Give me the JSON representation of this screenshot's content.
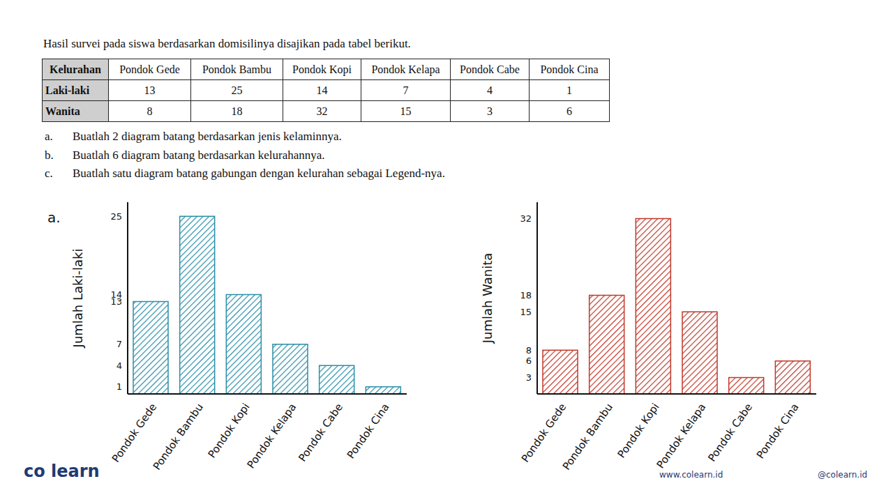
{
  "header": {
    "title": "Hasil survei pada siswa berdasarkan domisilinya disajikan pada tabel berikut."
  },
  "table": {
    "header": [
      "Kelurahan",
      "Pondok Gede",
      "Pondok Bambu",
      "Pondok Kopi",
      "Pondok Kelapa",
      "Pondok Cabe",
      "Pondok Cina"
    ],
    "rows": [
      [
        "Laki-laki",
        13,
        25,
        14,
        7,
        4,
        1
      ],
      [
        "Wanita",
        8,
        18,
        32,
        15,
        3,
        6
      ]
    ]
  },
  "questions": [
    {
      "label": "a.",
      "text": "Buatlah 2 diagram batang berdasarkan jenis kelaminnya."
    },
    {
      "label": "b.",
      "text": "Buatlah 6 diagram batang berdasarkan kelurahannya."
    },
    {
      "label": "c.",
      "text": "Buatlah satu diagram batang gabungan dengan kelurahan sebagai Legend-nya."
    }
  ],
  "answer_label": "a.",
  "branding": {
    "logo": "co learn",
    "website": "www.colearn.id",
    "social": "@colearn.id"
  },
  "chart_data": [
    {
      "type": "bar",
      "categories": [
        "Pondok Gede",
        "Pondok Bambu",
        "Pondok Kopi",
        "Pondok Kelapa",
        "Pondok Cabe",
        "Pondok Cina"
      ],
      "values": [
        13,
        25,
        14,
        7,
        4,
        1
      ],
      "color": "#2a8fa8",
      "ylabel": "Jumlah Laki-laki",
      "ylim": [
        0,
        27
      ],
      "yticks": [
        1,
        4,
        7,
        13,
        14,
        25
      ],
      "grid": false
    },
    {
      "type": "bar",
      "categories": [
        "Pondok Gede",
        "Pondok Bambu",
        "Pondok Kopi",
        "Pondok Kelapa",
        "Pondok Cabe",
        "Pondok Cina"
      ],
      "values": [
        8,
        18,
        32,
        15,
        3,
        6
      ],
      "color": "#c0392b",
      "ylabel": "Jumlah Wanita",
      "ylim": [
        0,
        35
      ],
      "yticks": [
        3,
        6,
        8,
        15,
        18,
        32
      ],
      "grid": false
    }
  ]
}
